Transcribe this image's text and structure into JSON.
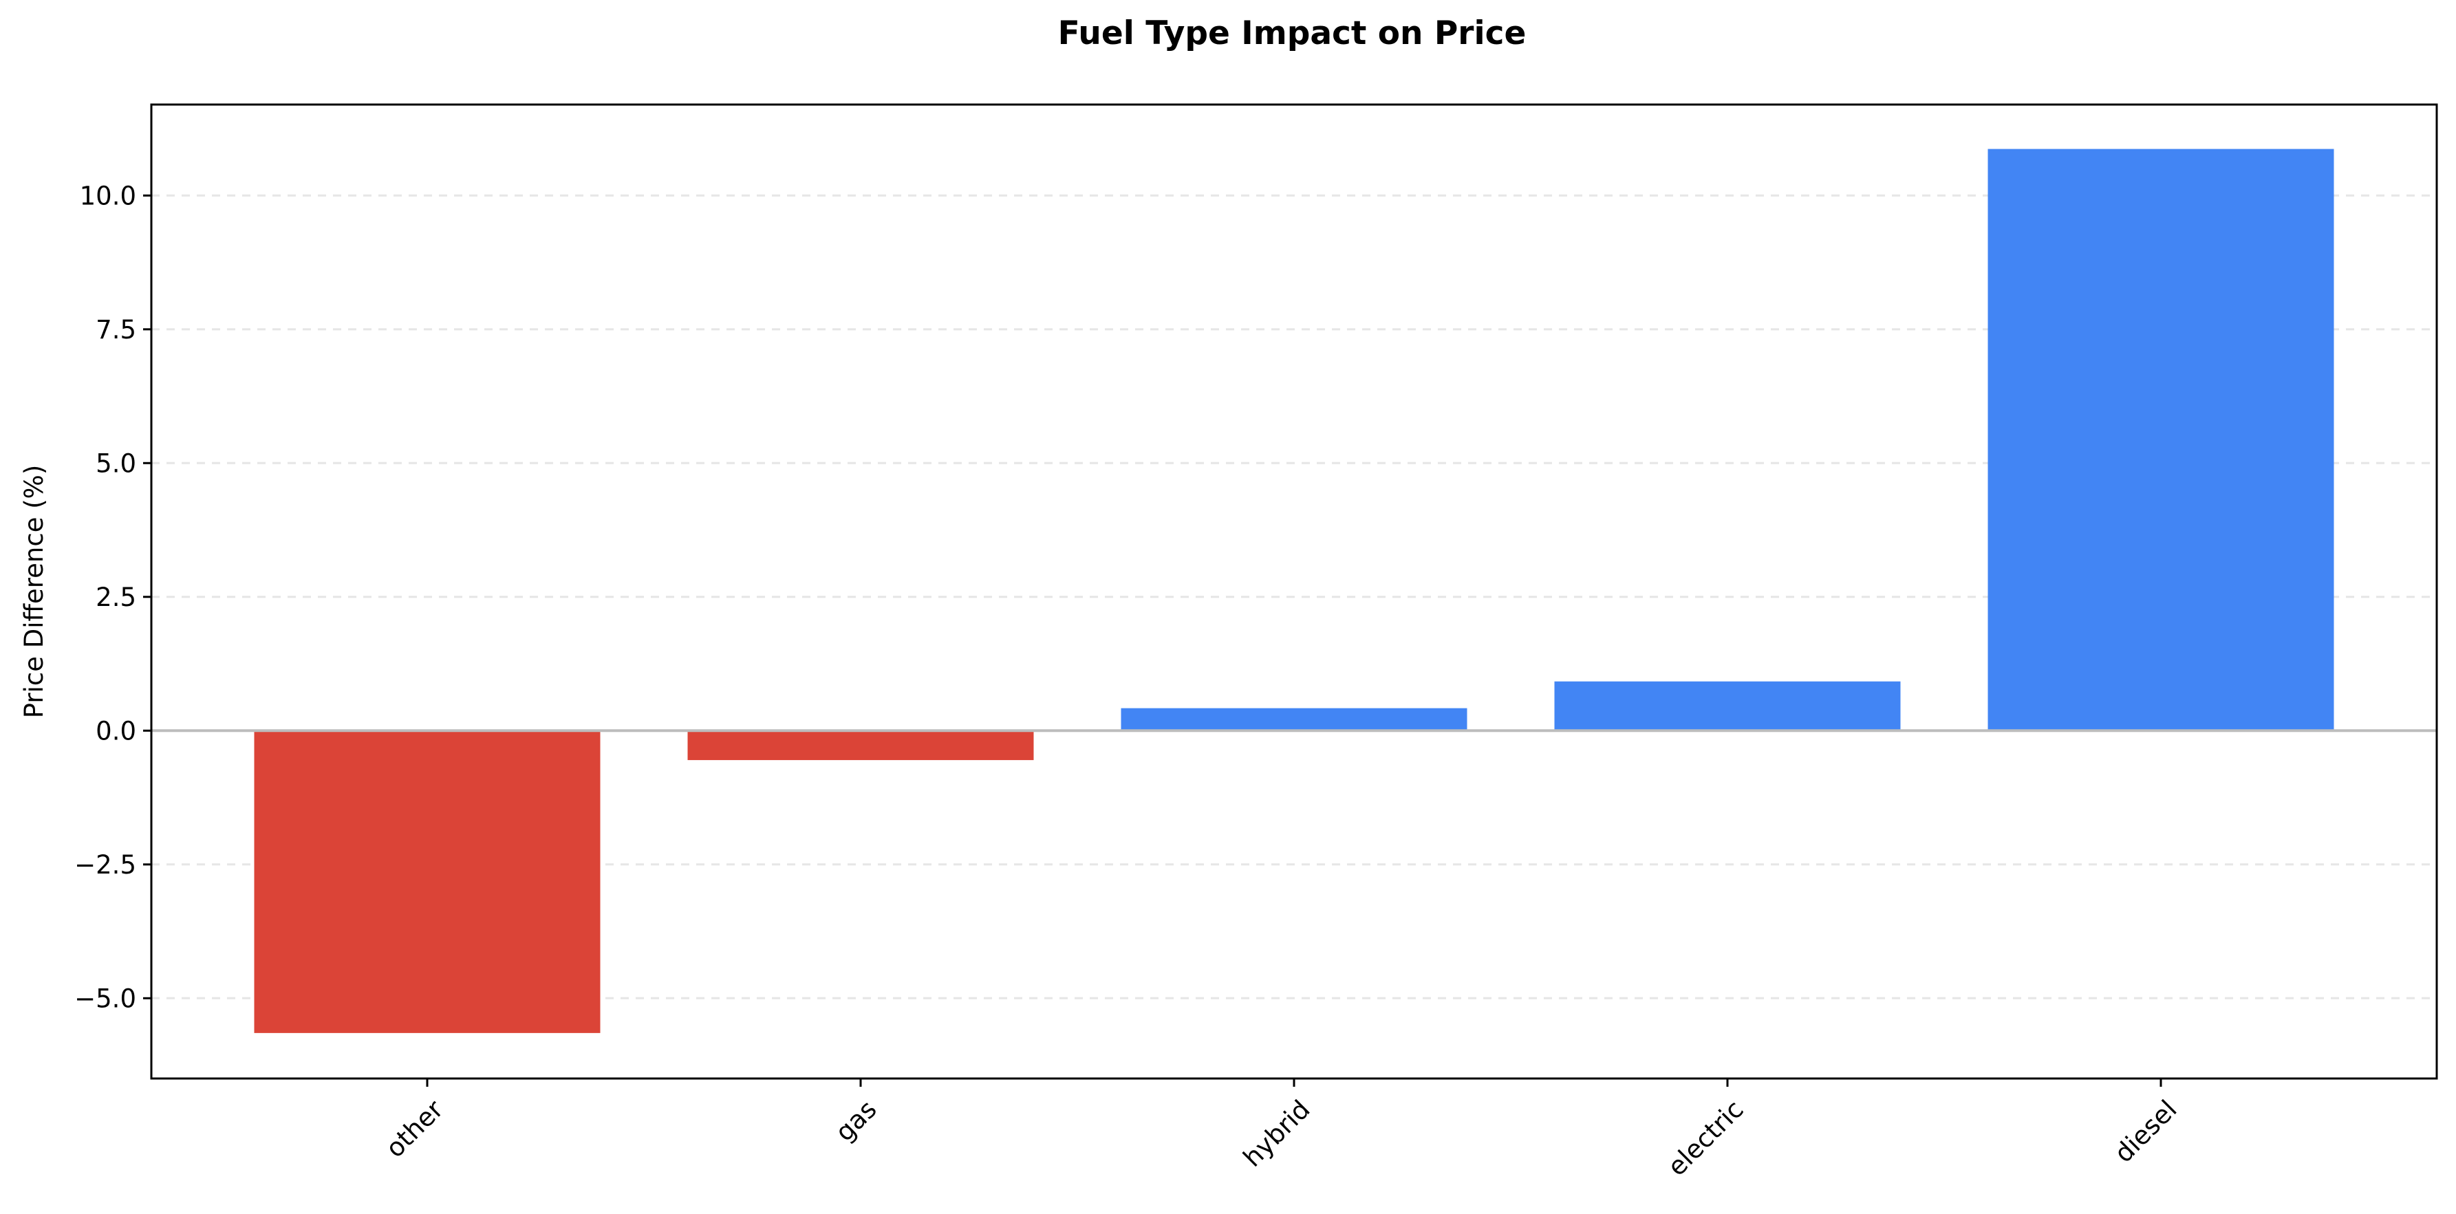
{
  "chart_data": {
    "type": "bar",
    "title": "Fuel Type Impact on Price",
    "xlabel": "",
    "ylabel": "Price Difference (%)",
    "categories": [
      "other",
      "gas",
      "hybrid",
      "electric",
      "diesel"
    ],
    "values": [
      -5.65,
      -0.55,
      0.42,
      0.92,
      10.87
    ],
    "ylim": [
      -6.5,
      11.7
    ],
    "yticks": [
      -5.0,
      -2.5,
      0.0,
      2.5,
      5.0,
      7.5,
      10.0
    ],
    "ytick_labels": [
      "−5.0",
      "−2.5",
      "0.0",
      "2.5",
      "5.0",
      "7.5",
      "10.0"
    ],
    "grid": {
      "axis": "y",
      "style": "dashed"
    },
    "zero_line": true,
    "colors": {
      "positive": "#4285f4",
      "negative": "#db4437",
      "grid": "#e6e6e6",
      "zero_line": "#bdbdbd",
      "axes": "#000000"
    }
  }
}
